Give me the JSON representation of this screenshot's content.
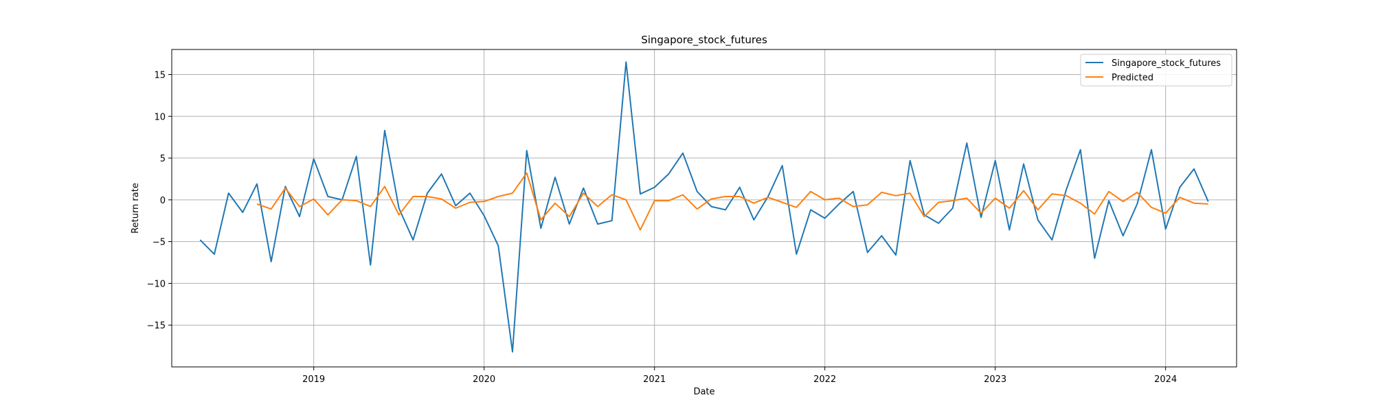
{
  "chart_data": {
    "type": "line",
    "title": "Singapore_stock_futures",
    "xlabel": "Date",
    "ylabel": "Return rate",
    "xlim": [
      "2018-03-01",
      "2024-06-01"
    ],
    "ylim": [
      -20,
      18
    ],
    "x_ticks": [
      "2019",
      "2020",
      "2021",
      "2022",
      "2023",
      "2024"
    ],
    "y_ticks": [
      15,
      10,
      5,
      0,
      -5,
      -10,
      -15
    ],
    "grid": true,
    "legend_position": "top-right",
    "series": [
      {
        "name": "Singapore_stock_futures",
        "color": "#1f77b4",
        "x": [
          "2018-05",
          "2018-06",
          "2018-07",
          "2018-08",
          "2018-09",
          "2018-10",
          "2018-11",
          "2018-12",
          "2019-01",
          "2019-02",
          "2019-03",
          "2019-04",
          "2019-05",
          "2019-06",
          "2019-07",
          "2019-08",
          "2019-09",
          "2019-10",
          "2019-11",
          "2019-12",
          "2020-01",
          "2020-02",
          "2020-03",
          "2020-04",
          "2020-05",
          "2020-06",
          "2020-07",
          "2020-08",
          "2020-09",
          "2020-10",
          "2020-11",
          "2020-12",
          "2021-01",
          "2021-02",
          "2021-03",
          "2021-04",
          "2021-05",
          "2021-06",
          "2021-07",
          "2021-08",
          "2021-09",
          "2021-10",
          "2021-11",
          "2021-12",
          "2022-01",
          "2022-02",
          "2022-03",
          "2022-04",
          "2022-05",
          "2022-06",
          "2022-07",
          "2022-08",
          "2022-09",
          "2022-10",
          "2022-11",
          "2022-12",
          "2023-01",
          "2023-02",
          "2023-03",
          "2023-04",
          "2023-05",
          "2023-06",
          "2023-07",
          "2023-08",
          "2023-09",
          "2023-10",
          "2023-11",
          "2023-12",
          "2024-01",
          "2024-02",
          "2024-03",
          "2024-04"
        ],
        "values": [
          -4.8,
          -6.5,
          0.8,
          -1.5,
          1.9,
          -7.4,
          1.6,
          -2.0,
          4.9,
          0.4,
          0.0,
          5.2,
          -7.8,
          8.3,
          -1.0,
          -4.8,
          0.8,
          3.1,
          -0.7,
          0.8,
          -1.9,
          -5.5,
          -18.2,
          5.9,
          -3.4,
          2.7,
          -2.9,
          1.4,
          -2.9,
          -2.5,
          16.5,
          0.7,
          1.5,
          3.1,
          5.6,
          1.0,
          -0.8,
          -1.2,
          1.5,
          -2.4,
          0.4,
          4.1,
          -6.5,
          -1.2,
          -2.2,
          -0.5,
          1.0,
          -6.3,
          -4.3,
          -6.6,
          4.7,
          -1.8,
          -2.8,
          -1.0,
          6.8,
          -2.1,
          4.7,
          -3.6,
          4.3,
          -2.4,
          -4.8,
          1.2,
          6.0,
          -7.0,
          -0.1,
          -4.3,
          -0.5,
          6.0,
          -3.5,
          1.5,
          3.7,
          -0.2
        ]
      },
      {
        "name": "Predicted",
        "color": "#ff7f0e",
        "x": [
          "2018-09",
          "2018-10",
          "2018-11",
          "2018-12",
          "2019-01",
          "2019-02",
          "2019-03",
          "2019-04",
          "2019-05",
          "2019-06",
          "2019-07",
          "2019-08",
          "2019-09",
          "2019-10",
          "2019-11",
          "2019-12",
          "2020-01",
          "2020-02",
          "2020-03",
          "2020-04",
          "2020-05",
          "2020-06",
          "2020-07",
          "2020-08",
          "2020-09",
          "2020-10",
          "2020-11",
          "2020-12",
          "2021-01",
          "2021-02",
          "2021-03",
          "2021-04",
          "2021-05",
          "2021-06",
          "2021-07",
          "2021-08",
          "2021-09",
          "2021-10",
          "2021-11",
          "2021-12",
          "2022-01",
          "2022-02",
          "2022-03",
          "2022-04",
          "2022-05",
          "2022-06",
          "2022-07",
          "2022-08",
          "2022-09",
          "2022-10",
          "2022-11",
          "2022-12",
          "2023-01",
          "2023-02",
          "2023-03",
          "2023-04",
          "2023-05",
          "2023-06",
          "2023-07",
          "2023-08",
          "2023-09",
          "2023-10",
          "2023-11",
          "2023-12",
          "2024-01",
          "2024-02",
          "2024-03",
          "2024-04"
        ],
        "values": [
          -0.5,
          -1.1,
          1.4,
          -0.8,
          0.1,
          -1.8,
          0.0,
          -0.1,
          -0.8,
          1.6,
          -1.8,
          0.4,
          0.4,
          0.1,
          -1.0,
          -0.3,
          -0.2,
          0.4,
          0.8,
          3.2,
          -2.4,
          -0.4,
          -2.0,
          0.8,
          -0.8,
          0.6,
          0.0,
          -3.6,
          -0.1,
          -0.1,
          0.6,
          -1.1,
          0.1,
          0.4,
          0.4,
          -0.4,
          0.3,
          -0.3,
          -0.9,
          1.0,
          0.0,
          0.2,
          -0.8,
          -0.6,
          0.9,
          0.5,
          0.8,
          -2.0,
          -0.3,
          -0.1,
          0.2,
          -1.6,
          0.2,
          -1.0,
          1.1,
          -1.2,
          0.7,
          0.5,
          -0.4,
          -1.7,
          1.0,
          -0.2,
          0.9,
          -0.9,
          -1.6,
          0.3,
          -0.4,
          -0.5
        ]
      }
    ]
  }
}
